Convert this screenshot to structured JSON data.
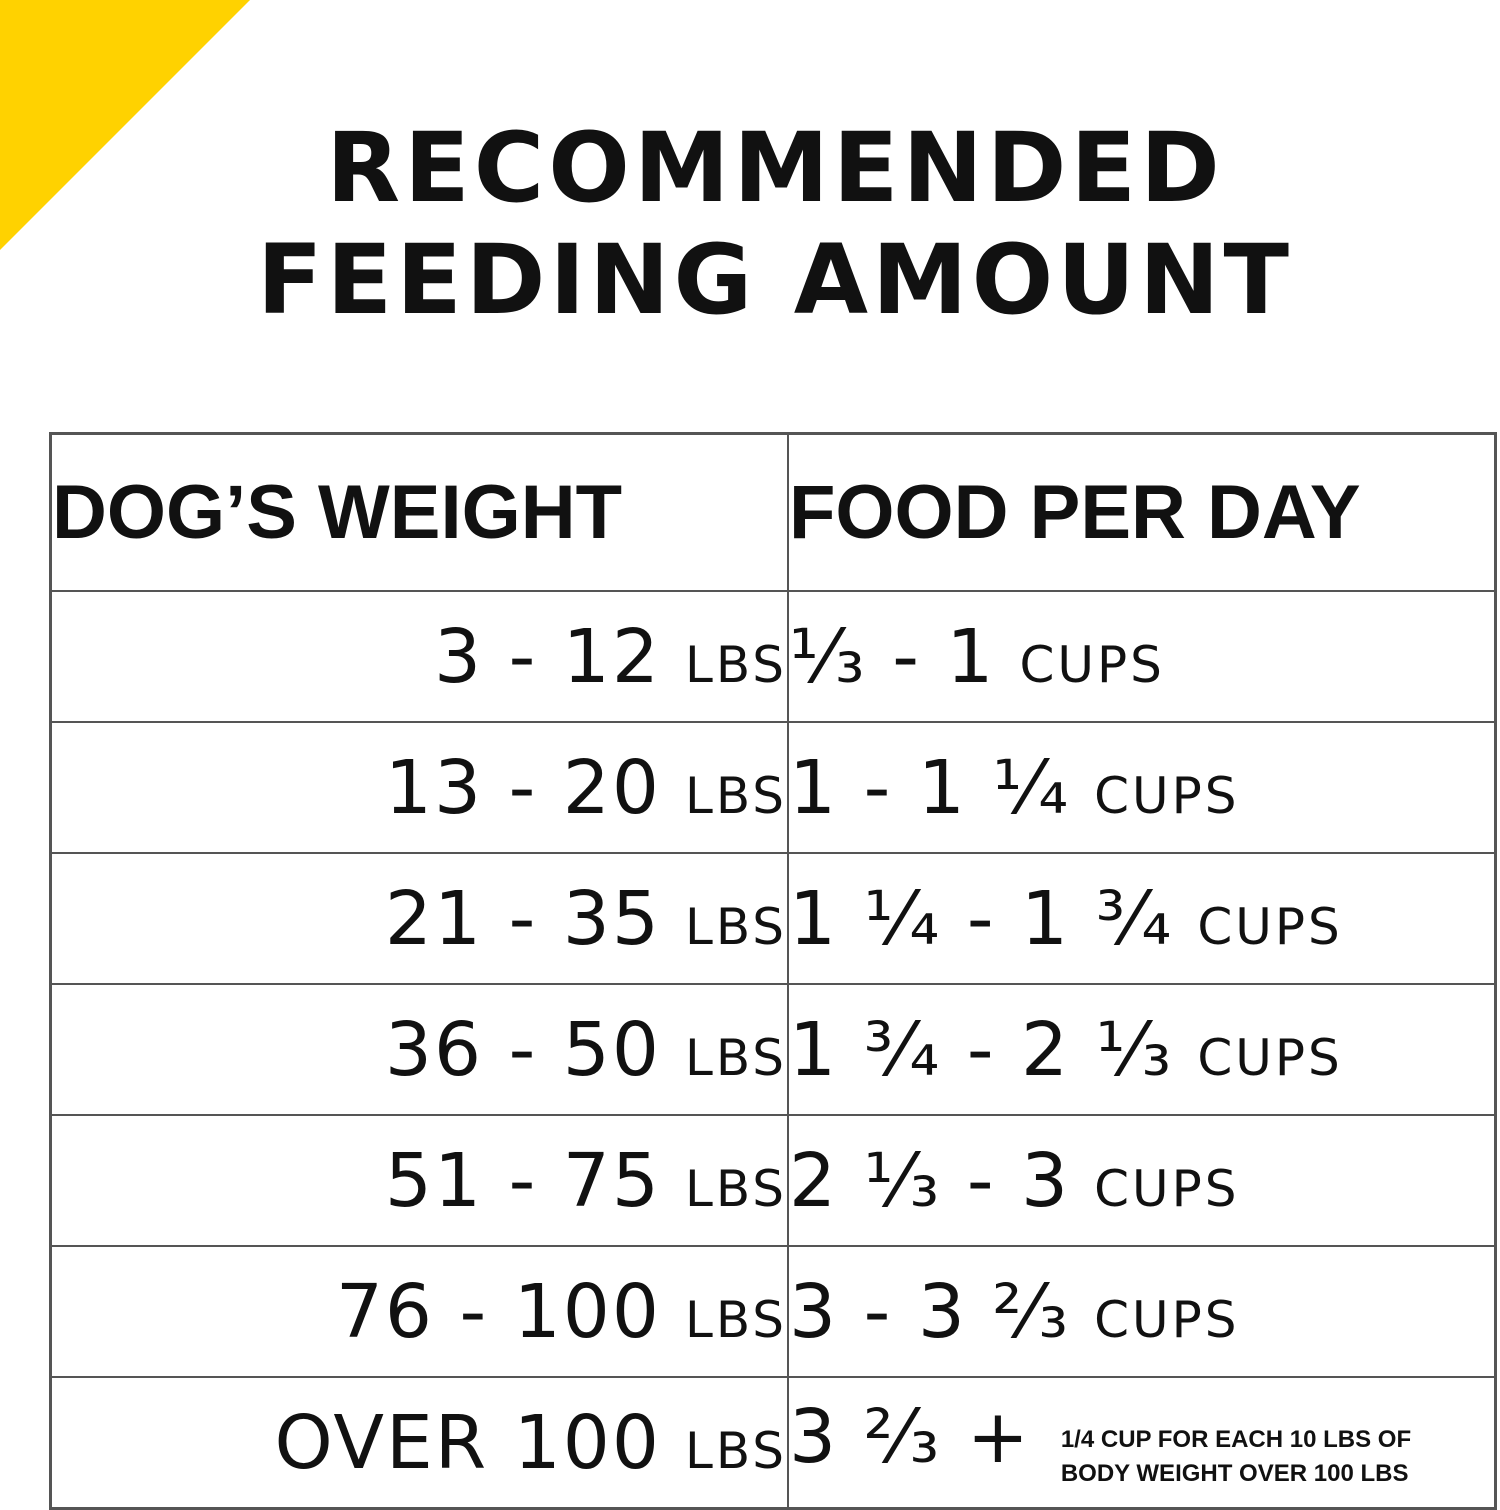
{
  "title": {
    "line1": "RECOMMENDED",
    "line2": "FEEDING AMOUNT"
  },
  "table": {
    "headers": [
      "DOG’S WEIGHT",
      "FOOD PER DAY"
    ],
    "rows": [
      {
        "weight": "3 - 12",
        "weight_unit": "LBS",
        "food": "¹⁄₃ - 1",
        "food_unit": "CUPS"
      },
      {
        "weight": "13 - 20",
        "weight_unit": "LBS",
        "food": "1 - 1 ¹⁄₄",
        "food_unit": "CUPS"
      },
      {
        "weight": "21 - 35",
        "weight_unit": "LBS",
        "food": "1 ¹⁄₄ - 1 ³⁄₄",
        "food_unit": "CUPS"
      },
      {
        "weight": "36 - 50",
        "weight_unit": "LBS",
        "food": "1 ³⁄₄ - 2 ¹⁄₃",
        "food_unit": "CUPS"
      },
      {
        "weight": "51 - 75",
        "weight_unit": "LBS",
        "food": "2 ¹⁄₃ - 3",
        "food_unit": "CUPS"
      },
      {
        "weight": "76 - 100",
        "weight_unit": "LBS",
        "food": "3 - 3 ²⁄₃",
        "food_unit": "CUPS"
      },
      {
        "weight": "OVER 100",
        "weight_unit": "LBS",
        "food": "3 ²⁄₃ +",
        "food_note": "1/4 CUP FOR EACH 10 LBS OF\nBODY WEIGHT OVER 100 LBS"
      }
    ]
  },
  "colors": {
    "accent_corner": "#FFD200",
    "text": "#111111",
    "border": "#555555"
  }
}
